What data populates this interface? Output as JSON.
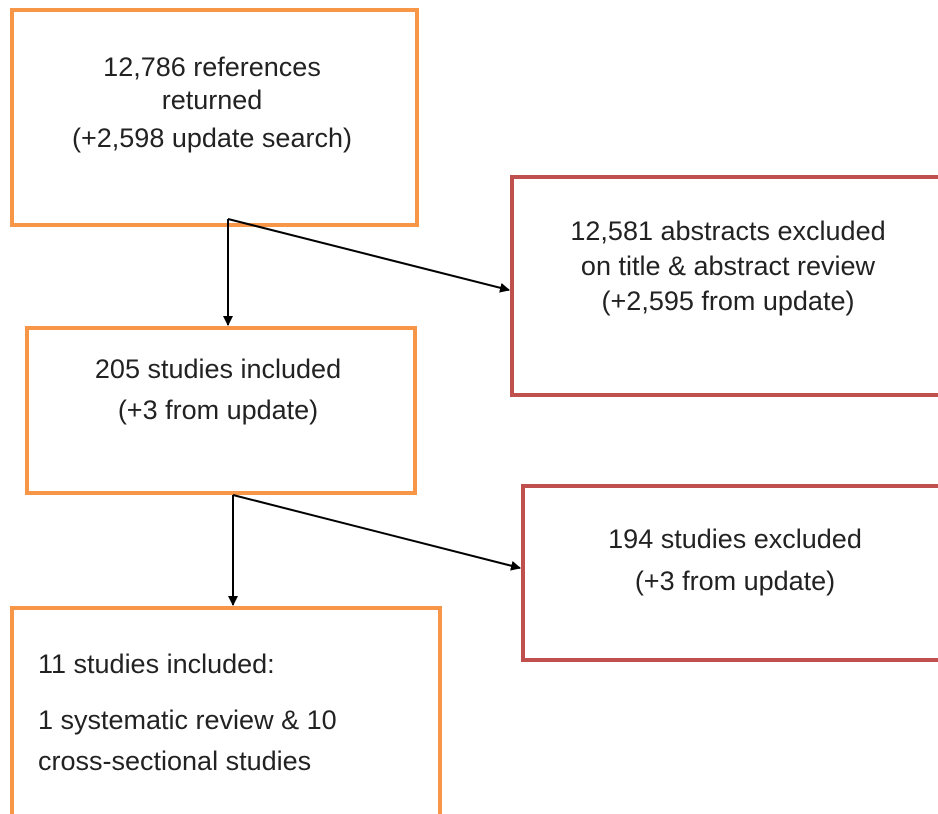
{
  "nodes": [
    {
      "lines": [
        "12,786 references",
        "returned",
        "(+2,598 update search)"
      ]
    },
    {
      "lines": [
        "12,581 abstracts excluded",
        "on title & abstract review",
        "(+2,595 from update)"
      ]
    },
    {
      "lines": [
        "205 studies included",
        "(+3 from update)"
      ]
    },
    {
      "lines": [
        "194 studies excluded",
        "(+3 from update)"
      ]
    },
    {
      "lines": [
        "11 studies included:",
        "1 systematic review & 10",
        "cross-sectional studies"
      ]
    }
  ]
}
